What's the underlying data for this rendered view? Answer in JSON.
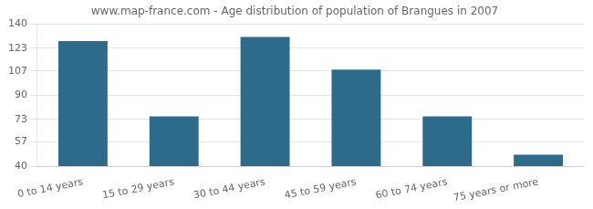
{
  "chart_data": {
    "type": "bar",
    "title": "www.map-france.com - Age distribution of population of Brangues in 2007",
    "categories": [
      "0 to 14 years",
      "15 to 29 years",
      "30 to 44 years",
      "45 to 59 years",
      "60 to 74 years",
      "75 years or more"
    ],
    "values": [
      128,
      75,
      131,
      108,
      75,
      48
    ],
    "color": "#2e6b8a",
    "ylim": [
      40,
      140
    ],
    "yticks": [
      40,
      57,
      73,
      90,
      107,
      123,
      140
    ],
    "grid": true
  }
}
